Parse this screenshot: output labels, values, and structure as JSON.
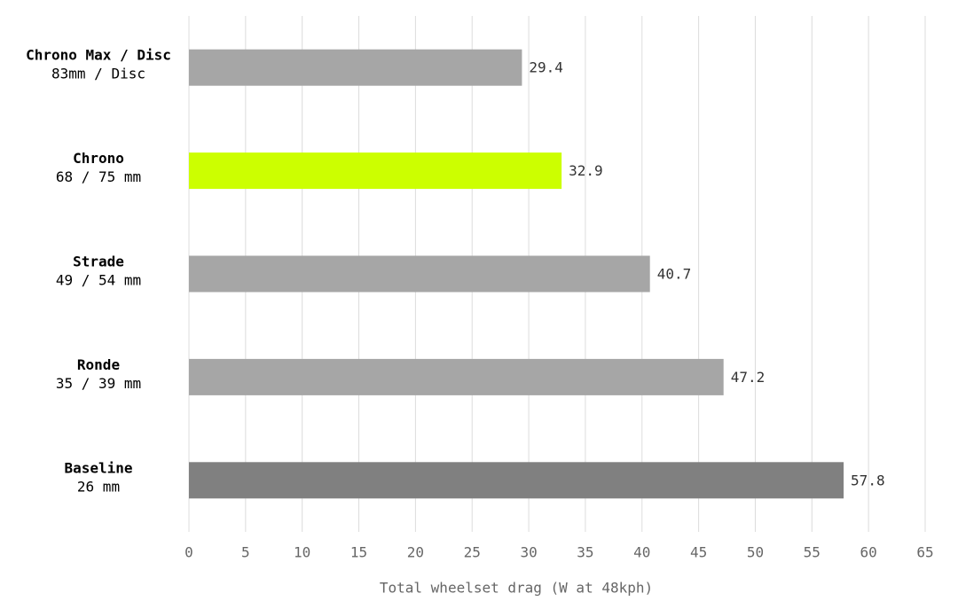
{
  "chart_data": {
    "type": "hbar",
    "categories": [
      "Chrono Max / Disc",
      "Chrono",
      "Strade",
      "Ronde",
      "Baseline"
    ],
    "category_sublabels": [
      "83mm / Disc",
      "68 / 75 mm",
      "49 / 54 mm",
      "35 / 39 mm",
      "26 mm"
    ],
    "values": [
      29.4,
      32.9,
      40.7,
      47.2,
      57.8
    ],
    "colors": [
      "#a6a6a6",
      "#ccff00",
      "#a6a6a6",
      "#a6a6a6",
      "#808080"
    ],
    "x_label": "Total wheelset drag (W at 48kph)",
    "xlim": [
      0,
      65
    ],
    "xticks": [
      0,
      5,
      10,
      15,
      20,
      25,
      30,
      35,
      40,
      45,
      50,
      55,
      60,
      65
    ],
    "grid": true
  }
}
